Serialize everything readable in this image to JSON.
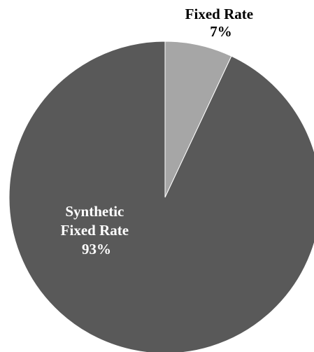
{
  "chart_data": {
    "type": "pie",
    "title": "",
    "start_angle_deg": 0,
    "direction": "clockwise",
    "slices": [
      {
        "label": "Fixed Rate",
        "pct_label": "7%",
        "value": 7,
        "color": "#a6a6a6",
        "label_color": "#000000",
        "label_placement": "outside"
      },
      {
        "label_lines": [
          "Synthetic",
          "Fixed Rate"
        ],
        "pct_label": "93%",
        "value": 93,
        "color": "#595959",
        "label_color": "#ffffff",
        "label_placement": "inside"
      }
    ],
    "slice_border_color": "#ffffff"
  }
}
